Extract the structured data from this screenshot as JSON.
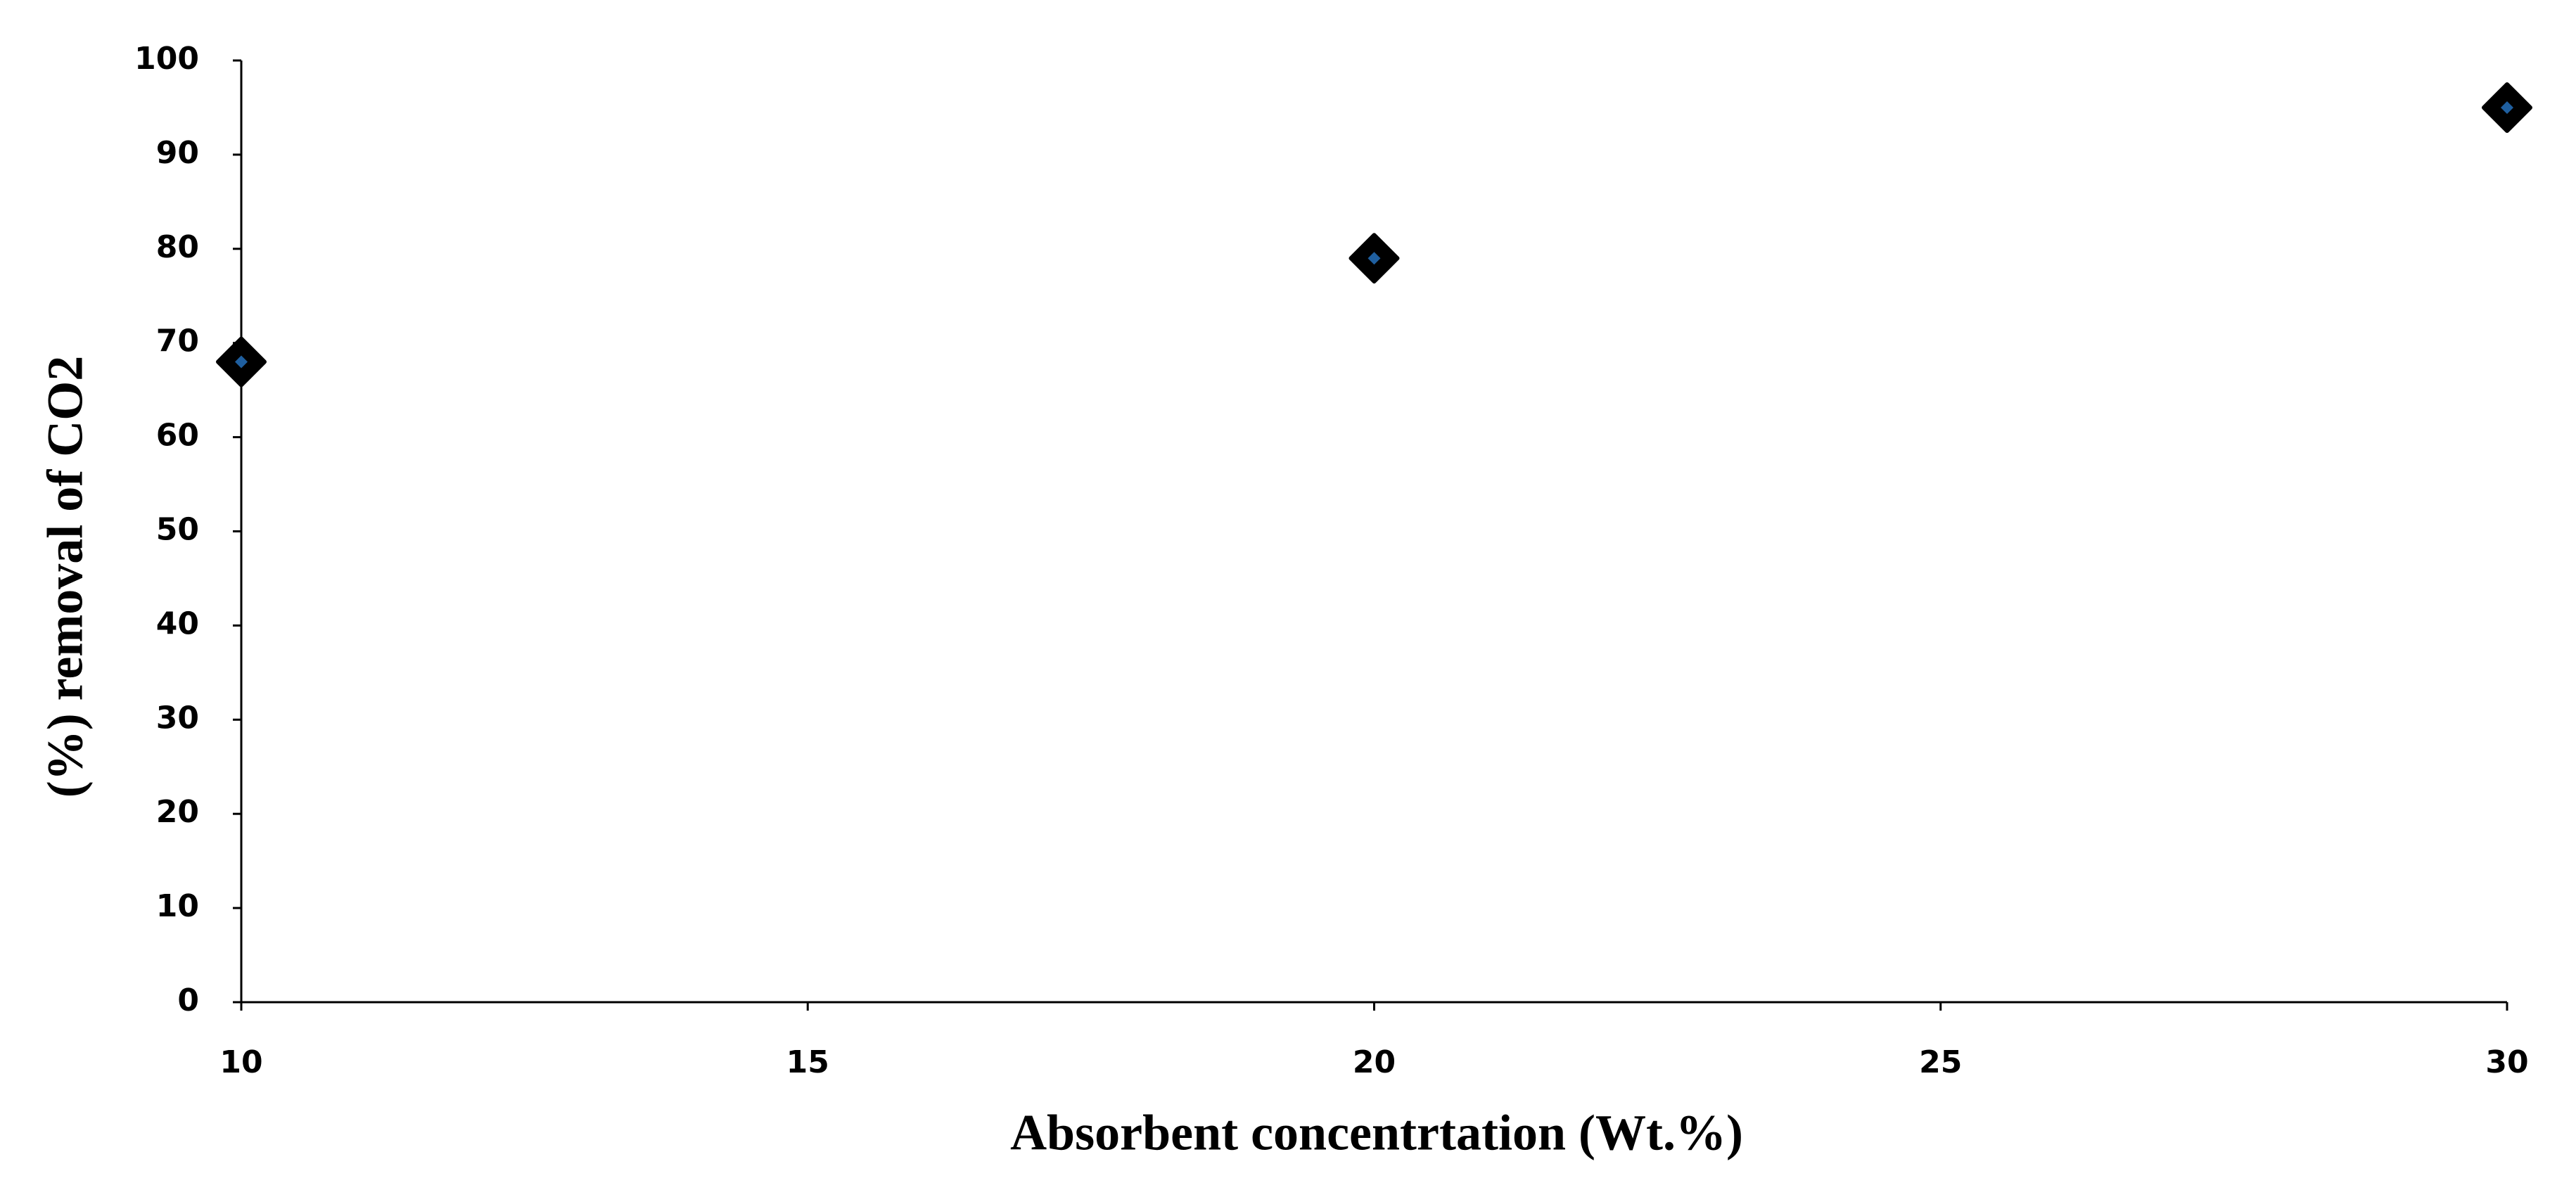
{
  "chart_data": {
    "type": "scatter",
    "x_label": "Absorbent concentrtation  (Wt.%)",
    "y_label": "(%)  removal  of CO2",
    "x": [
      10,
      20,
      30
    ],
    "values": [
      68,
      79,
      95
    ],
    "color": "#000000",
    "inner_color": "#1f5f9f",
    "xlim": [
      10,
      30
    ],
    "xticks": [
      10,
      15,
      20,
      25,
      30
    ],
    "ylim": [
      0,
      100
    ],
    "yticks": [
      0,
      10,
      20,
      30,
      40,
      50,
      60,
      70,
      80,
      90,
      100
    ],
    "grid": false
  }
}
